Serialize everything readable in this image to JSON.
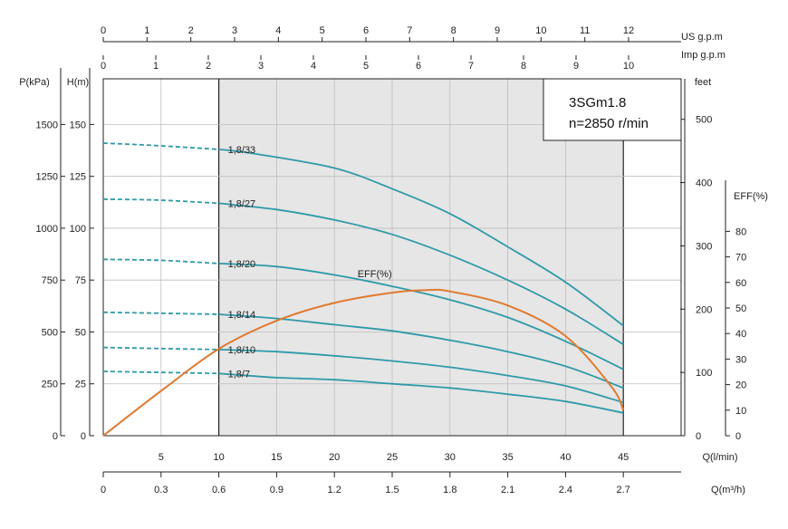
{
  "chart_data": {
    "type": "line",
    "model": "3SGm1.8",
    "speed": "n=2850 r/min",
    "grid": true,
    "shaded_region": [
      10,
      45
    ],
    "x_axes": {
      "q_lmin": {
        "title": "Q(l/min)",
        "ticks": [
          5,
          10,
          15,
          20,
          25,
          30,
          35,
          40,
          45
        ],
        "labels": [
          "5",
          "10",
          "15",
          "20",
          "25",
          "30",
          "35",
          "40",
          "45"
        ],
        "range": [
          0,
          50
        ]
      },
      "q_m3h": {
        "title": "Q(m³/h)",
        "ticks": [
          0,
          0.3,
          0.6,
          0.9,
          1.2,
          1.5,
          1.8,
          2.1,
          2.4,
          2.7
        ],
        "labels": [
          "0",
          "0.3",
          "0.6",
          "0.9",
          "1.2",
          "1.5",
          "1.8",
          "2.1",
          "2.4",
          "2.7"
        ],
        "range": [
          0,
          3.0
        ]
      },
      "us_gpm": {
        "title": "US  g.p.m",
        "ticks": [
          0,
          1,
          2,
          3,
          4,
          5,
          6,
          7,
          8,
          9,
          10,
          11,
          12
        ],
        "labels": [
          "0",
          "1",
          "2",
          "3",
          "4",
          "5",
          "6",
          "7",
          "8",
          "9",
          "10",
          "11",
          "12"
        ],
        "range": [
          0,
          13.2
        ]
      },
      "imp_gpm": {
        "title": "Imp  g.p.m",
        "ticks": [
          0,
          1,
          2,
          3,
          4,
          5,
          6,
          7,
          8,
          9,
          10
        ],
        "labels": [
          "0",
          "1",
          "2",
          "3",
          "4",
          "5",
          "6",
          "7",
          "8",
          "9",
          "10"
        ],
        "range": [
          0,
          11
        ]
      }
    },
    "y_axes": {
      "head_m": {
        "title": "H(m)",
        "ticks": [
          0,
          25,
          50,
          75,
          100,
          125,
          150
        ],
        "labels": [
          "0",
          "25",
          "50",
          "75",
          "100",
          "125",
          "150"
        ],
        "range": [
          0,
          172
        ]
      },
      "pressure_kpa": {
        "title": "P(kPa)",
        "ticks": [
          0,
          250,
          500,
          750,
          1000,
          1250,
          1500
        ],
        "labels": [
          "0",
          "250",
          "500",
          "750",
          "1000",
          "1250",
          "1500"
        ],
        "range": [
          0,
          1720
        ]
      },
      "feet": {
        "title": "feet",
        "ticks": [
          0,
          100,
          200,
          300,
          400,
          500
        ],
        "labels": [
          "0",
          "100",
          "200",
          "300",
          "400",
          "500"
        ],
        "range": [
          0,
          564
        ]
      },
      "eff": {
        "title": "EFF(%)",
        "ticks": [
          0,
          10,
          20,
          30,
          40,
          50,
          60,
          70,
          80
        ],
        "labels": [
          "0",
          "10",
          "20",
          "30",
          "40",
          "50",
          "60",
          "70",
          "80"
        ],
        "range": [
          0,
          100
        ]
      }
    },
    "series": [
      {
        "name": "1,8/33",
        "dashed_x": [
          0,
          4,
          10
        ],
        "dashed_y": [
          141,
          140,
          138
        ],
        "x": [
          10,
          13,
          20,
          25,
          30,
          35,
          40,
          45
        ],
        "y": [
          138,
          136,
          129,
          119,
          107,
          91,
          74,
          53
        ]
      },
      {
        "name": "1,8/27",
        "dashed_x": [
          0,
          5,
          10
        ],
        "dashed_y": [
          114,
          113.5,
          112
        ],
        "x": [
          10,
          15,
          20,
          25,
          30,
          35,
          40,
          45
        ],
        "y": [
          112,
          109,
          104,
          97,
          87,
          75,
          61,
          44
        ]
      },
      {
        "name": "1,8/20",
        "dashed_x": [
          0,
          5,
          10
        ],
        "dashed_y": [
          85,
          84.5,
          83
        ],
        "x": [
          10,
          15,
          20,
          25,
          30,
          35,
          40,
          45
        ],
        "y": [
          83,
          81.5,
          77.5,
          72,
          65.5,
          57,
          45.5,
          32
        ]
      },
      {
        "name": "1,8/14",
        "dashed_x": [
          0,
          5,
          10
        ],
        "dashed_y": [
          59.5,
          59,
          58.5
        ],
        "x": [
          10,
          15,
          20,
          25,
          30,
          35,
          40,
          45
        ],
        "y": [
          58.5,
          56.5,
          53.5,
          50.5,
          46,
          40.5,
          33.5,
          23
        ]
      },
      {
        "name": "1,8/10",
        "dashed_x": [
          0,
          5,
          10
        ],
        "dashed_y": [
          42.5,
          42,
          41.5
        ],
        "x": [
          10,
          15,
          20,
          25,
          30,
          35,
          40,
          45
        ],
        "y": [
          41.5,
          40.5,
          38.5,
          36,
          33,
          29,
          24,
          16
        ]
      },
      {
        "name": "1,8/7",
        "dashed_x": [
          0,
          5,
          10
        ],
        "dashed_y": [
          31,
          30.5,
          30
        ],
        "x": [
          10,
          15,
          20,
          25,
          30,
          35,
          40,
          45
        ],
        "y": [
          30,
          28,
          27,
          25,
          23,
          20,
          16.5,
          11
        ]
      }
    ],
    "efficiency": {
      "name": "EFF(%)",
      "x": [
        0,
        5,
        10,
        15,
        20,
        25,
        28,
        30,
        35,
        40,
        44,
        45
      ],
      "y": [
        0,
        17.5,
        34,
        45,
        52,
        56,
        57,
        56.5,
        51,
        39,
        19,
        10
      ]
    }
  }
}
